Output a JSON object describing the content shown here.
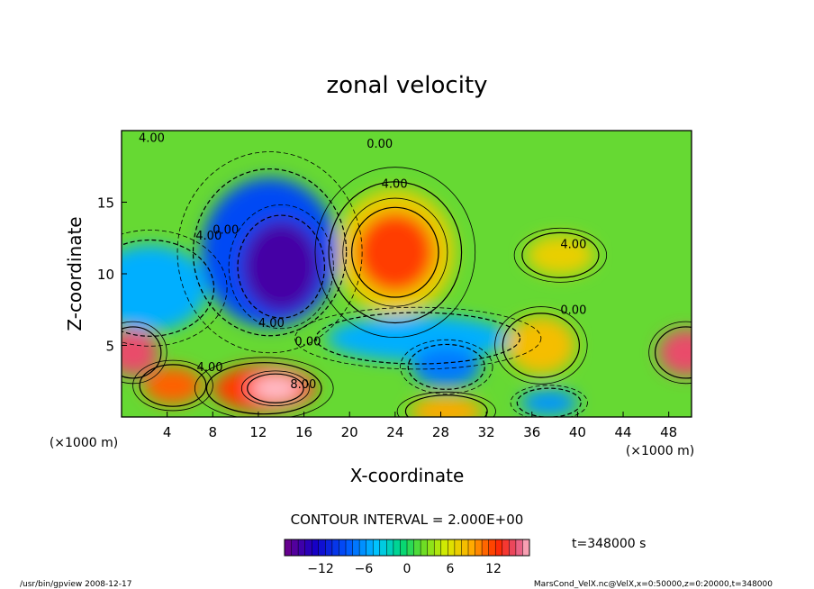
{
  "chart_data": {
    "type": "heatmap",
    "title": "zonal velocity",
    "xlabel": "X-coordinate",
    "ylabel": "Z-coordinate",
    "x_unit_note": "(×1000 m)",
    "y_unit_note": "(×1000 m)",
    "xlim": [
      0,
      50
    ],
    "ylim": [
      0,
      20
    ],
    "x_ticks": [
      4,
      8,
      12,
      16,
      20,
      24,
      28,
      32,
      36,
      40,
      44,
      48
    ],
    "y_ticks": [
      5,
      10,
      15
    ],
    "contour_interval_label": "CONTOUR INTERVAL = 2.000E+00",
    "colorbar": {
      "min": -17,
      "max": 17,
      "ticks": [
        -12,
        -6,
        0,
        6,
        12
      ],
      "tick_labels": [
        "−12",
        "−6",
        "0",
        "6",
        "12"
      ]
    },
    "contour_labels": [
      {
        "text": "4.00",
        "x": 1.5,
        "y": 19.2
      },
      {
        "text": "0.00",
        "x": 21.5,
        "y": 18.8
      },
      {
        "text": "4.00",
        "x": 22.8,
        "y": 16.0
      },
      {
        "text": "4.00",
        "x": 6.5,
        "y": 12.4
      },
      {
        "text": "0.00",
        "x": 8.0,
        "y": 12.8
      },
      {
        "text": "4.00",
        "x": 38.5,
        "y": 11.8
      },
      {
        "text": "4.00",
        "x": 12.0,
        "y": 6.3
      },
      {
        "text": "0.00",
        "x": 15.2,
        "y": 5.0
      },
      {
        "text": "4.00",
        "x": 6.6,
        "y": 3.2
      },
      {
        "text": "8.00",
        "x": 14.8,
        "y": 2.0
      },
      {
        "text": "0.00",
        "x": 38.5,
        "y": 7.2
      }
    ],
    "features": [
      {
        "value": -15,
        "x": 14.0,
        "y": 10.5,
        "rx": 3.4,
        "ry": 3.2
      },
      {
        "value": -9,
        "x": 13.0,
        "y": 11.5,
        "rx": 6.0,
        "ry": 5.2
      },
      {
        "value": -7,
        "x": 28.5,
        "y": 3.5,
        "rx": 3.0,
        "ry": 1.4
      },
      {
        "value": -5,
        "x": 26.0,
        "y": 5.5,
        "rx": 8.0,
        "ry": 1.6
      },
      {
        "value": -5,
        "x": 2.5,
        "y": 9.0,
        "rx": 5.0,
        "ry": 3.0
      },
      {
        "value": -6,
        "x": 37.5,
        "y": 1.0,
        "rx": 2.5,
        "ry": 0.9
      },
      {
        "value": 12,
        "x": 24.0,
        "y": 11.5,
        "rx": 3.4,
        "ry": 2.8
      },
      {
        "value": 7,
        "x": 24.0,
        "y": 11.5,
        "rx": 5.2,
        "ry": 4.4
      },
      {
        "value": 15,
        "x": 1.0,
        "y": 4.5,
        "rx": 2.2,
        "ry": 1.6
      },
      {
        "value": 15,
        "x": 49.5,
        "y": 4.5,
        "rx": 2.4,
        "ry": 1.6
      },
      {
        "value": 8,
        "x": 36.8,
        "y": 5.0,
        "rx": 3.0,
        "ry": 2.0
      },
      {
        "value": 12,
        "x": 12.5,
        "y": 2.0,
        "rx": 4.5,
        "ry": 1.6
      },
      {
        "value": 17,
        "x": 13.5,
        "y": 2.0,
        "rx": 2.2,
        "ry": 0.9
      },
      {
        "value": 11,
        "x": 4.5,
        "y": 2.2,
        "rx": 2.6,
        "ry": 1.3
      },
      {
        "value": 7,
        "x": 38.5,
        "y": 11.3,
        "rx": 3.0,
        "ry": 1.4
      },
      {
        "value": 9,
        "x": 28.5,
        "y": 0.4,
        "rx": 3.2,
        "ry": 1.0
      }
    ]
  },
  "time_label": "t=348000 s",
  "footer": {
    "left": "/usr/bin/gpview   2008-12-17",
    "right": "MarsCond_VelX.nc@VelX,x=0:50000,z=0:20000,t=348000"
  }
}
